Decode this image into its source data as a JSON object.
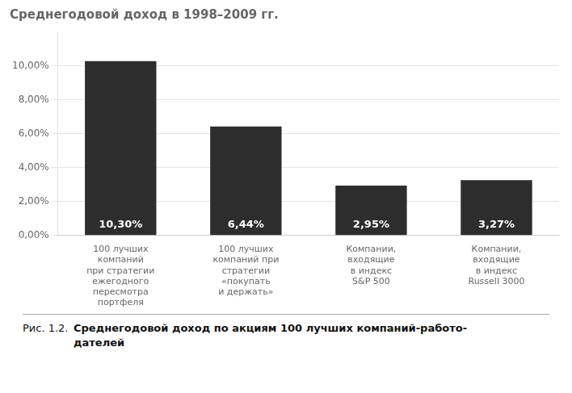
{
  "chart_data": {
    "type": "bar",
    "title": "Среднегодовой доход в 1998–2009 гг.",
    "categories": [
      "100 лучших\nкомпаний\nпри стратегии\nежегодного\nпересмотра\nпортфеля",
      "100 лучших\nкомпаний при\nстратегии\n«покупать\nи держать»",
      "Компании,\nвходящие\nв индекс\nS&P 500",
      "Компании,\nвходящие\nв индекс\nRussell 3000"
    ],
    "values": [
      10.3,
      6.44,
      2.95,
      3.27
    ],
    "value_labels": [
      "10,30%",
      "6,44%",
      "2,95%",
      "3,27%"
    ],
    "data_labels": true,
    "color": "#2d2d2d",
    "ylim": [
      0,
      12
    ],
    "yticks": [
      {
        "value": 0,
        "label": "0,00%"
      },
      {
        "value": 2,
        "label": "2,00%"
      },
      {
        "value": 4,
        "label": "4,00%"
      },
      {
        "value": 6,
        "label": "6,00%"
      },
      {
        "value": 8,
        "label": "8,00%"
      },
      {
        "value": 10,
        "label": "10,00%"
      }
    ],
    "grid": true,
    "annotations": [
      "Рис. 1.2. ",
      "Среднегодовой доход по акциям 100 лучших компаний-работо-",
      "дателей"
    ]
  }
}
